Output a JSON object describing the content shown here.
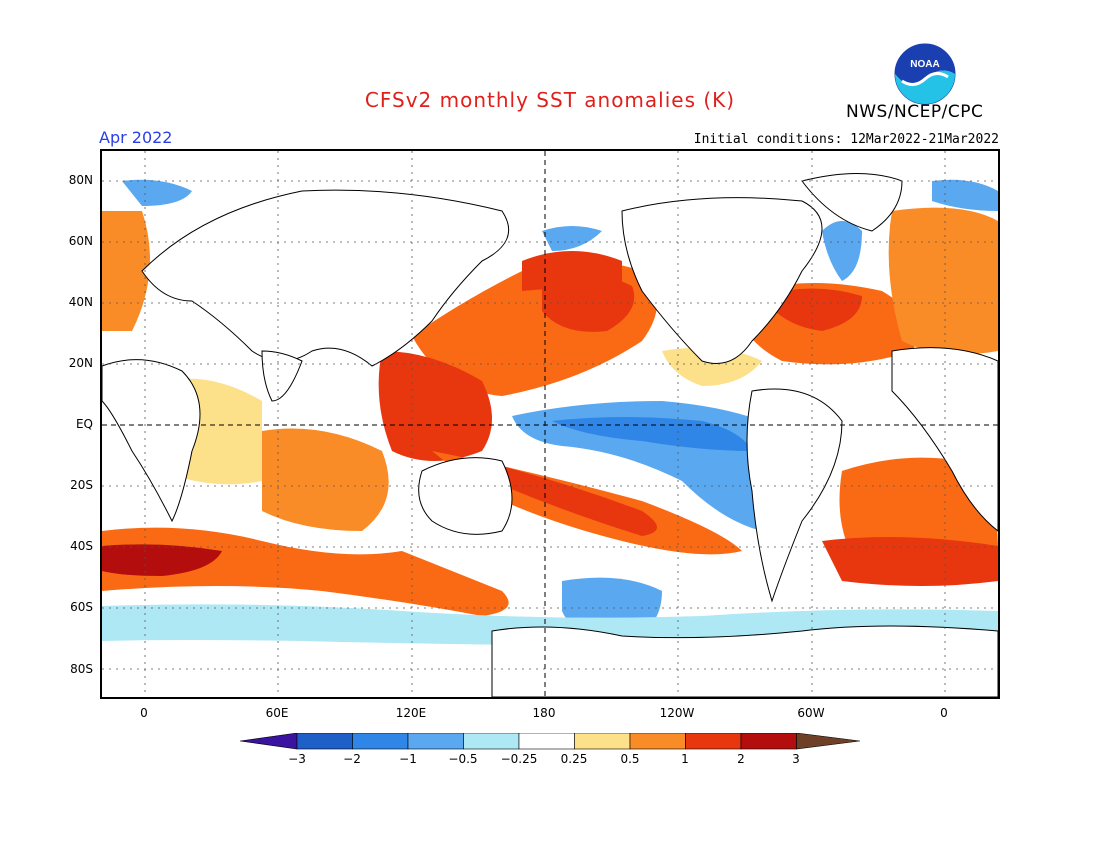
{
  "header": {
    "title": "CFSv2 monthly SST anomalies (K)",
    "org": "NWS/NCEP/CPC",
    "month": "Apr 2022",
    "initial_conditions": "Initial conditions: 12Mar2022-21Mar2022",
    "logo_text": "NOAA"
  },
  "axes": {
    "lat_labels": [
      "80N",
      "60N",
      "40N",
      "20N",
      "EQ",
      "20S",
      "40S",
      "60S",
      "80S"
    ],
    "lon_labels": [
      "0",
      "60E",
      "120E",
      "180",
      "120W",
      "60W",
      "0"
    ]
  },
  "colorbar": {
    "labels": [
      "−3",
      "−2",
      "−1",
      "−0.5",
      "−0.25",
      "0.25",
      "0.5",
      "1",
      "2",
      "3"
    ],
    "colors": [
      "#3a14a0",
      "#1f5fc8",
      "#2f86e6",
      "#5aa8f0",
      "#aee8f4",
      "#ffffff",
      "#fde08a",
      "#fa8c28",
      "#e8360e",
      "#b40d0d",
      "#6e4028"
    ]
  },
  "anomaly_colors": {
    "strong_warm": "#b40d0d",
    "warm": "#e8360e",
    "moderate_warm": "#fa6a14",
    "weak_warm": "#fde08a",
    "weak_cool": "#aee8f4",
    "cool": "#5aa8f0",
    "moderate_cool": "#2f86e6"
  }
}
